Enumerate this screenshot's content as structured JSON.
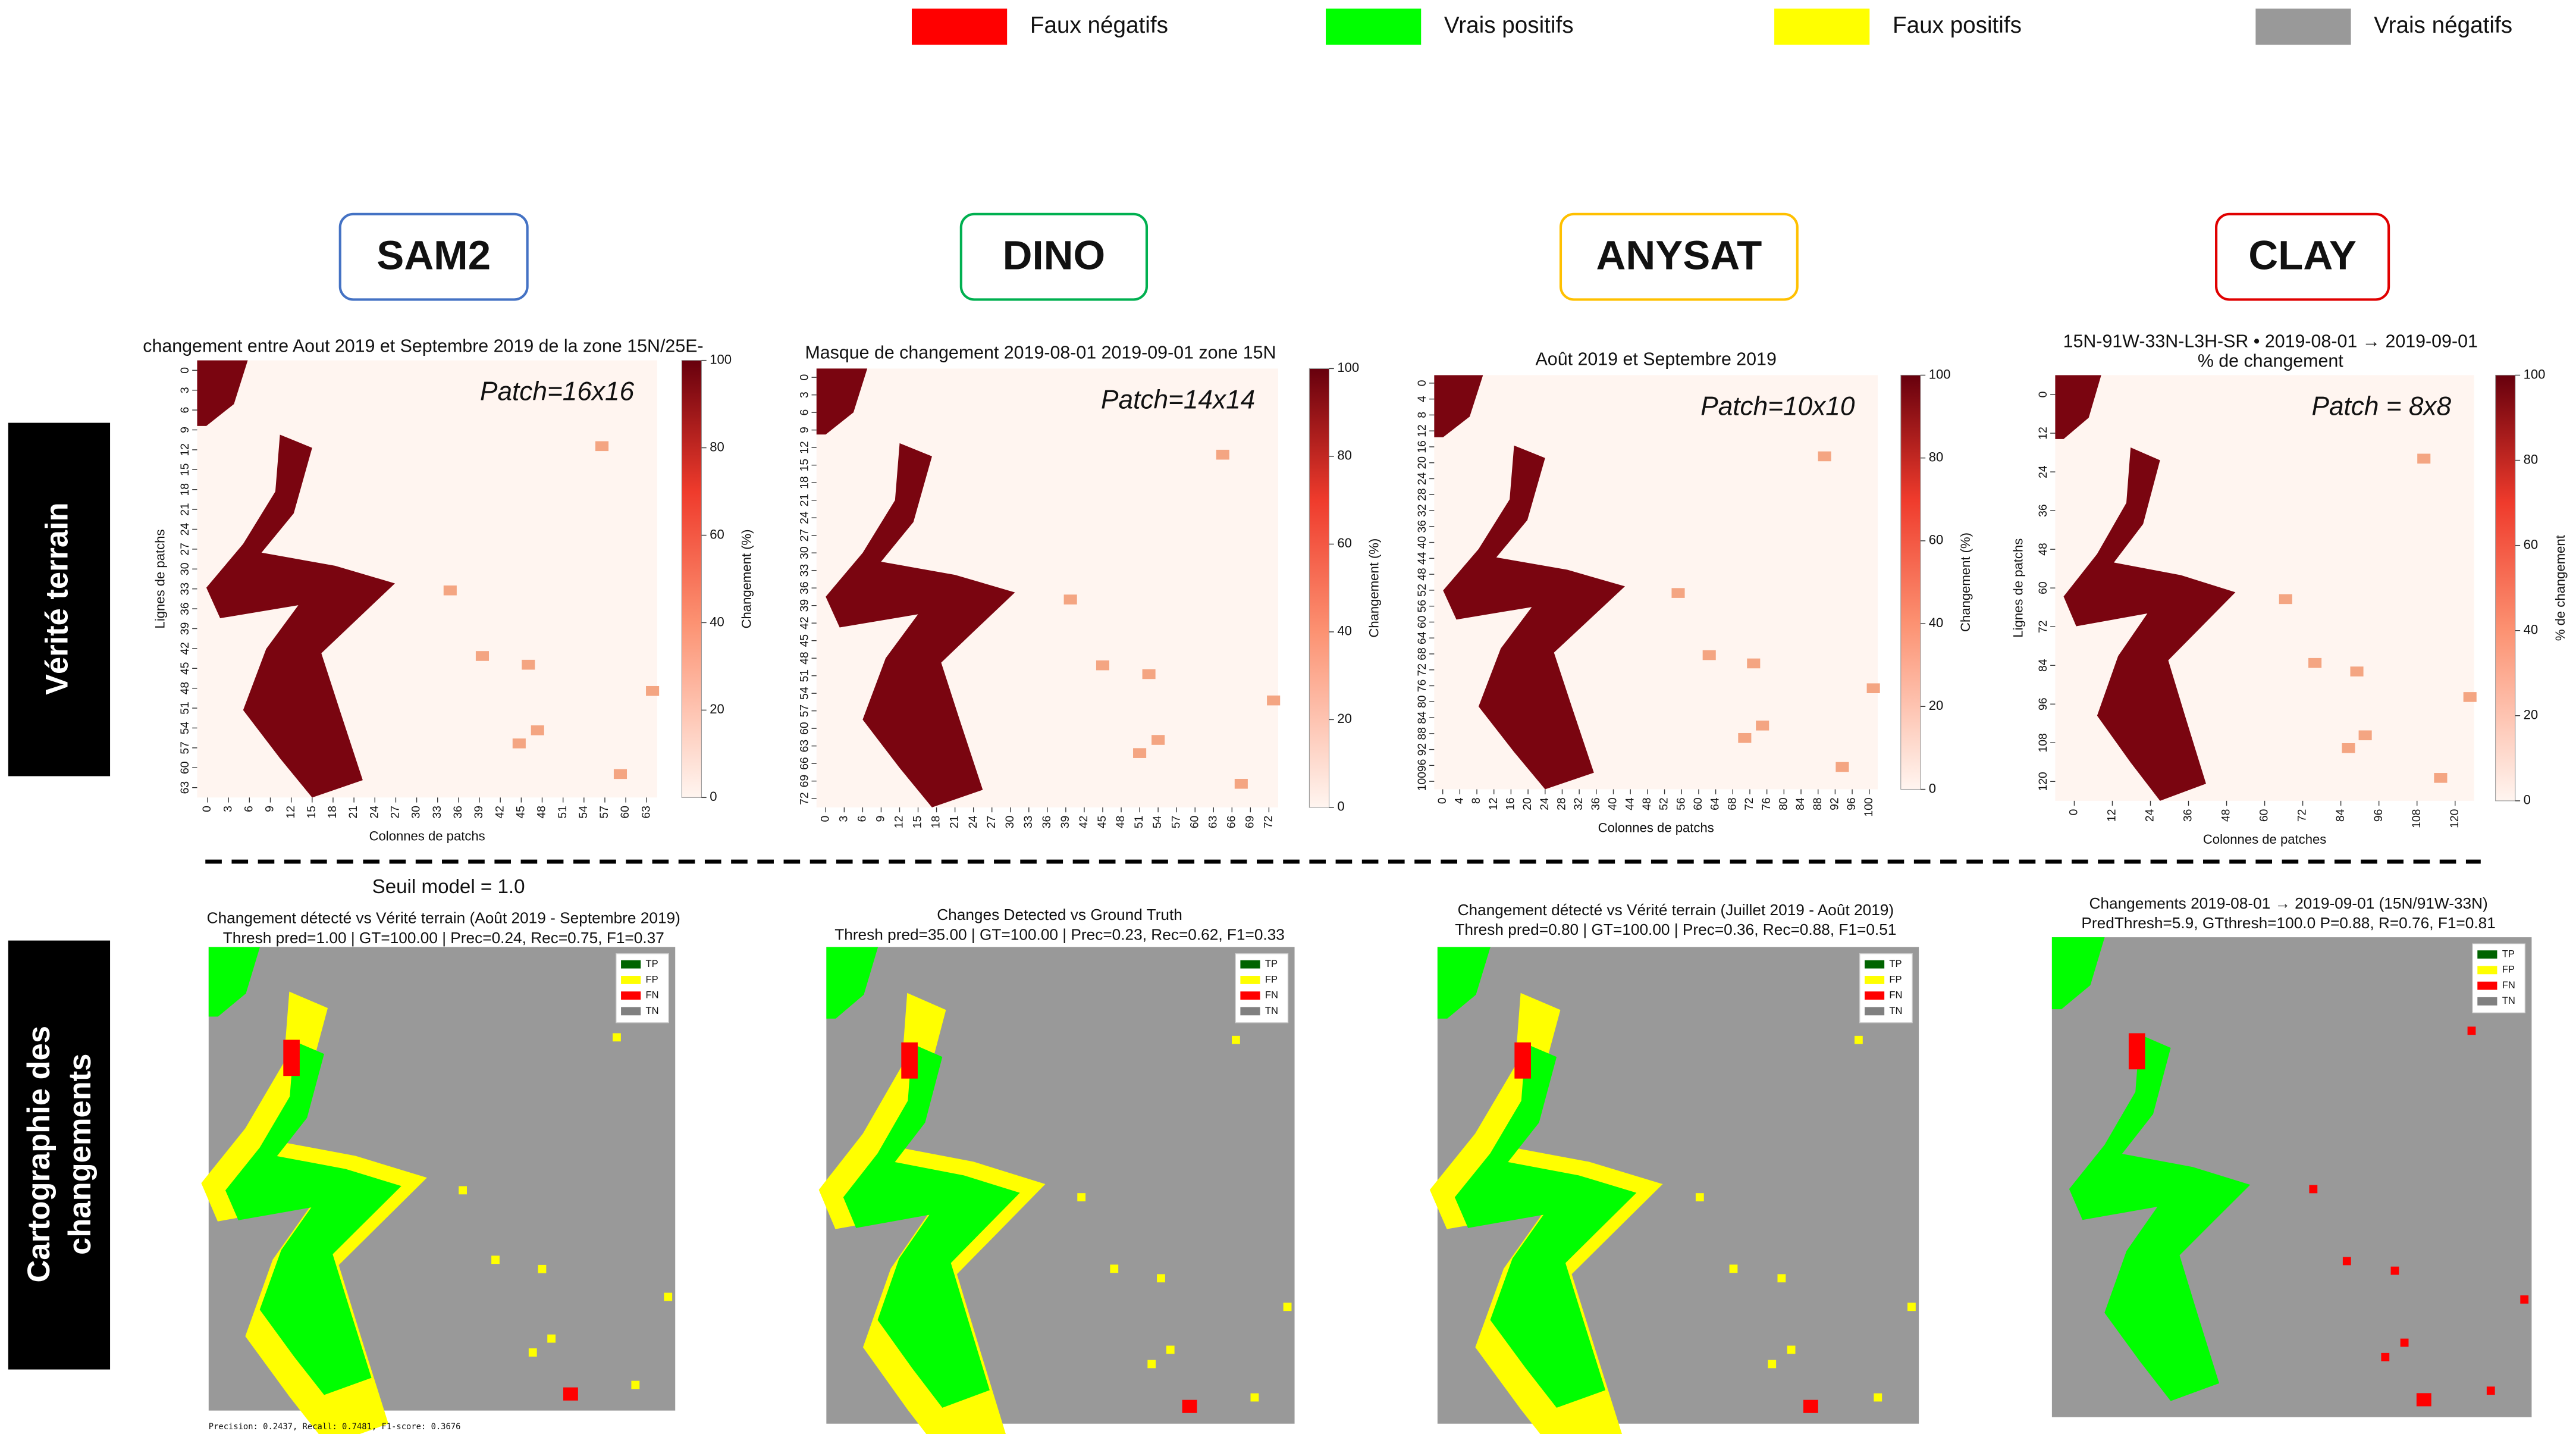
{
  "legend": [
    {
      "label": "Faux négatifs",
      "color": "#ff0000"
    },
    {
      "label": "Vrais positifs",
      "color": "#00ff00"
    },
    {
      "label": "Faux positifs",
      "color": "#ffff00"
    },
    {
      "label": "Vrais négatifs",
      "color": "#999999"
    }
  ],
  "models": [
    {
      "name": "SAM2",
      "color": "#4472c4"
    },
    {
      "name": "DINO",
      "color": "#00b050"
    },
    {
      "name": "ANYSAT",
      "color": "#ffc000"
    },
    {
      "name": "CLAY",
      "color": "#e00000"
    }
  ],
  "row_labels": {
    "ground_truth": "Vérité terrain",
    "change_map": [
      "Cartographie des",
      "changements"
    ]
  },
  "heatmaps": [
    {
      "title": [
        "changement entre Aout 2019 et Septembre 2019 de la zone 15N/25E-"
      ],
      "patch": "Patch=16x16",
      "ylabel": "Lignes de patchs",
      "xlabel": "Colonnes de patchs",
      "ticks": [
        0,
        3,
        6,
        9,
        12,
        15,
        18,
        21,
        24,
        27,
        30,
        33,
        36,
        39,
        42,
        45,
        48,
        51,
        54,
        57,
        60,
        63
      ],
      "colorbar_ticks": [
        0,
        20,
        40,
        60,
        80,
        100
      ],
      "colorbar_label": "Changement (%)"
    },
    {
      "title": [
        "Masque de changement 2019-08-01 2019-09-01 zone 15N"
      ],
      "patch": "Patch=14x14",
      "ticks": [
        0,
        3,
        6,
        9,
        12,
        15,
        18,
        21,
        24,
        27,
        30,
        33,
        36,
        39,
        42,
        45,
        48,
        51,
        54,
        57,
        60,
        63,
        66,
        69,
        72
      ],
      "colorbar_ticks": [
        0,
        20,
        40,
        60,
        80,
        100
      ],
      "colorbar_label": "Changement (%)"
    },
    {
      "title": [
        "Août 2019 et Septembre 2019"
      ],
      "patch": "Patch=10x10",
      "xlabel": "Colonnes de patchs",
      "ticks": [
        0,
        4,
        8,
        12,
        16,
        20,
        24,
        28,
        32,
        36,
        40,
        44,
        48,
        52,
        56,
        60,
        64,
        68,
        72,
        76,
        80,
        84,
        88,
        92,
        96,
        100
      ],
      "colorbar_ticks": [
        0,
        20,
        40,
        60,
        80,
        100
      ],
      "colorbar_label": "Changement (%)"
    },
    {
      "title": [
        "15N-91W-33N-L3H-SR • 2019-08-01 → 2019-09-01",
        "% de changement"
      ],
      "patch": "Patch = 8x8",
      "ylabel": "Lignes de patchs",
      "xlabel": "Colonnes de patches",
      "ticks": [
        0,
        12,
        24,
        36,
        48,
        60,
        72,
        84,
        96,
        108,
        120
      ],
      "colorbar_ticks": [
        0,
        20,
        40,
        60,
        80,
        100
      ],
      "colorbar_label": "% de changement"
    }
  ],
  "threshold_note": "Seuil model = 1.0",
  "change_maps": [
    {
      "title": [
        "Changement détecté vs Vérité terrain (Août 2019 - Septembre 2019)",
        "Thresh pred=1.00 | GT=100.00 | Prec=0.24, Rec=0.75, F1=0.37"
      ],
      "legend": [
        "TP",
        "FP",
        "FN",
        "TN"
      ],
      "footnote": "Precision: 0.2437, Recall: 0.7481, F1-score: 0.3676"
    },
    {
      "title": [
        "Changes Detected vs Ground Truth",
        "Thresh pred=35.00 | GT=100.00 | Prec=0.23, Rec=0.62, F1=0.33"
      ],
      "legend": [
        "TP",
        "FP",
        "FN",
        "TN"
      ]
    },
    {
      "title": [
        "Changement détecté vs Vérité terrain (Juillet 2019 - Août 2019)",
        "Thresh pred=0.80 | GT=100.00 | Prec=0.36, Rec=0.88, F1=0.51"
      ],
      "legend": [
        "TP",
        "FP",
        "FN",
        "TN"
      ]
    },
    {
      "title": [
        "Changements 2019-08-01 → 2019-09-01 (15N/91W-33N)",
        "PredThresh=5.9, GTthresh=100.0  P=0.88, R=0.76, F1=0.81"
      ],
      "legend": [
        "TP",
        "FP",
        "FN",
        "TN"
      ]
    }
  ]
}
